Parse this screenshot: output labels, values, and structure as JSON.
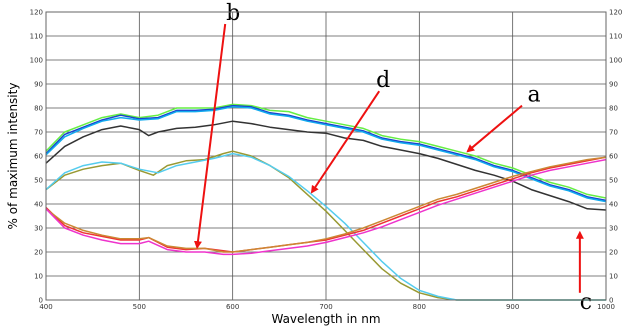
{
  "chart_data": {
    "type": "line",
    "title": "",
    "xlabel": "Wavelength in nm",
    "ylabel": "% of maximum intensity",
    "xlim": [
      400,
      1000
    ],
    "ylim": [
      0,
      120
    ],
    "x_ticks": [
      400,
      500,
      600,
      700,
      800,
      900,
      1000
    ],
    "y_ticks": [
      0,
      10,
      20,
      30,
      40,
      50,
      60,
      70,
      80,
      90,
      100,
      110,
      120
    ],
    "grid": true,
    "series": [
      {
        "color": "#66ee44",
        "points": [
          [
            400,
            62
          ],
          [
            420,
            70
          ],
          [
            440,
            73
          ],
          [
            460,
            76
          ],
          [
            480,
            77.5
          ],
          [
            500,
            76
          ],
          [
            520,
            77
          ],
          [
            540,
            80
          ],
          [
            560,
            80
          ],
          [
            580,
            80
          ],
          [
            600,
            81.5
          ],
          [
            620,
            81
          ],
          [
            640,
            79
          ],
          [
            660,
            78.5
          ],
          [
            680,
            76
          ],
          [
            700,
            74.5
          ],
          [
            720,
            73
          ],
          [
            740,
            71.5
          ],
          [
            760,
            68.5
          ],
          [
            780,
            67
          ],
          [
            800,
            66
          ],
          [
            820,
            64
          ],
          [
            840,
            62
          ],
          [
            860,
            60
          ],
          [
            880,
            57
          ],
          [
            900,
            55
          ],
          [
            920,
            52
          ],
          [
            940,
            49
          ],
          [
            960,
            47
          ],
          [
            980,
            44
          ],
          [
            1000,
            42.5
          ]
        ]
      },
      {
        "color": "#1a44cc",
        "points": [
          [
            400,
            61
          ],
          [
            420,
            69
          ],
          [
            440,
            72
          ],
          [
            460,
            75
          ],
          [
            480,
            77
          ],
          [
            500,
            75.5
          ],
          [
            520,
            76
          ],
          [
            540,
            79
          ],
          [
            560,
            79
          ],
          [
            580,
            79.5
          ],
          [
            600,
            81
          ],
          [
            620,
            80.5
          ],
          [
            640,
            78
          ],
          [
            660,
            77
          ],
          [
            680,
            75
          ],
          [
            700,
            73.5
          ],
          [
            720,
            72
          ],
          [
            740,
            70.5
          ],
          [
            760,
            67.5
          ],
          [
            780,
            66
          ],
          [
            800,
            65
          ],
          [
            820,
            63
          ],
          [
            840,
            61
          ],
          [
            860,
            59
          ],
          [
            880,
            56
          ],
          [
            900,
            54
          ],
          [
            920,
            51
          ],
          [
            940,
            48
          ],
          [
            960,
            46
          ],
          [
            980,
            43
          ],
          [
            1000,
            41.5
          ]
        ]
      },
      {
        "color": "#11aaee",
        "points": [
          [
            400,
            60.5
          ],
          [
            420,
            68
          ],
          [
            440,
            71.5
          ],
          [
            460,
            74.5
          ],
          [
            480,
            76
          ],
          [
            500,
            75
          ],
          [
            520,
            75.5
          ],
          [
            540,
            78.5
          ],
          [
            560,
            78.5
          ],
          [
            580,
            79
          ],
          [
            600,
            80.5
          ],
          [
            620,
            80
          ],
          [
            640,
            77.5
          ],
          [
            660,
            76.5
          ],
          [
            680,
            74.5
          ],
          [
            700,
            73
          ],
          [
            720,
            71.5
          ],
          [
            740,
            70
          ],
          [
            760,
            67
          ],
          [
            780,
            65.5
          ],
          [
            800,
            64.5
          ],
          [
            820,
            62.5
          ],
          [
            840,
            60.5
          ],
          [
            860,
            58.5
          ],
          [
            880,
            55.5
          ],
          [
            900,
            53.5
          ],
          [
            920,
            50.5
          ],
          [
            940,
            47.5
          ],
          [
            960,
            45.5
          ],
          [
            980,
            42.5
          ],
          [
            1000,
            41
          ]
        ]
      },
      {
        "color": "#333333",
        "points": [
          [
            400,
            57
          ],
          [
            420,
            64
          ],
          [
            440,
            68
          ],
          [
            460,
            71
          ],
          [
            480,
            72.5
          ],
          [
            500,
            71
          ],
          [
            510,
            68.5
          ],
          [
            520,
            70
          ],
          [
            540,
            71.5
          ],
          [
            560,
            72
          ],
          [
            580,
            73
          ],
          [
            600,
            74.5
          ],
          [
            620,
            73.5
          ],
          [
            640,
            72
          ],
          [
            660,
            71
          ],
          [
            680,
            70
          ],
          [
            700,
            69.5
          ],
          [
            720,
            67.5
          ],
          [
            740,
            66.5
          ],
          [
            760,
            64
          ],
          [
            780,
            62.5
          ],
          [
            800,
            61
          ],
          [
            820,
            59
          ],
          [
            840,
            56.5
          ],
          [
            860,
            54
          ],
          [
            880,
            52
          ],
          [
            900,
            49.5
          ],
          [
            920,
            46
          ],
          [
            940,
            43.5
          ],
          [
            960,
            41
          ],
          [
            980,
            38
          ],
          [
            1000,
            37.5
          ]
        ]
      },
      {
        "color": "#999933",
        "points": [
          [
            400,
            46
          ],
          [
            420,
            52
          ],
          [
            440,
            54.5
          ],
          [
            460,
            56
          ],
          [
            480,
            57
          ],
          [
            500,
            54
          ],
          [
            515,
            52
          ],
          [
            530,
            56
          ],
          [
            550,
            58
          ],
          [
            570,
            58.5
          ],
          [
            590,
            61
          ],
          [
            600,
            62
          ],
          [
            620,
            60
          ],
          [
            640,
            56
          ],
          [
            660,
            51
          ],
          [
            680,
            44
          ],
          [
            700,
            37
          ],
          [
            720,
            29
          ],
          [
            740,
            21
          ],
          [
            760,
            13
          ],
          [
            780,
            7
          ],
          [
            800,
            3
          ],
          [
            820,
            1
          ],
          [
            840,
            0
          ],
          [
            1000,
            0
          ]
        ]
      },
      {
        "color": "#55ccee",
        "points": [
          [
            400,
            46
          ],
          [
            420,
            53
          ],
          [
            440,
            56
          ],
          [
            460,
            57.5
          ],
          [
            480,
            57
          ],
          [
            500,
            54.5
          ],
          [
            520,
            53
          ],
          [
            540,
            56
          ],
          [
            560,
            57.5
          ],
          [
            580,
            59
          ],
          [
            600,
            61
          ],
          [
            620,
            59.5
          ],
          [
            640,
            56
          ],
          [
            660,
            51.5
          ],
          [
            680,
            45.5
          ],
          [
            700,
            39
          ],
          [
            720,
            32
          ],
          [
            740,
            24
          ],
          [
            760,
            16
          ],
          [
            780,
            9
          ],
          [
            800,
            4
          ],
          [
            820,
            1.5
          ],
          [
            840,
            0
          ],
          [
            1000,
            0
          ]
        ]
      },
      {
        "color": "#ee3333",
        "points": [
          [
            400,
            38.5
          ],
          [
            420,
            31
          ],
          [
            440,
            28
          ],
          [
            460,
            26.5
          ],
          [
            480,
            25
          ],
          [
            500,
            25
          ],
          [
            510,
            26
          ],
          [
            530,
            22
          ],
          [
            550,
            21
          ],
          [
            570,
            21.5
          ],
          [
            590,
            20.5
          ],
          [
            600,
            20
          ],
          [
            620,
            21
          ],
          [
            640,
            22
          ],
          [
            660,
            23
          ],
          [
            680,
            24
          ],
          [
            700,
            25
          ],
          [
            720,
            27
          ],
          [
            740,
            29
          ],
          [
            760,
            32
          ],
          [
            780,
            35
          ],
          [
            800,
            38
          ],
          [
            820,
            41
          ],
          [
            840,
            43
          ],
          [
            860,
            45.5
          ],
          [
            880,
            48
          ],
          [
            900,
            50.5
          ],
          [
            920,
            53
          ],
          [
            940,
            55
          ],
          [
            960,
            56.5
          ],
          [
            980,
            58
          ],
          [
            1000,
            59.5
          ]
        ]
      },
      {
        "color": "#cc8833",
        "points": [
          [
            400,
            38
          ],
          [
            420,
            32
          ],
          [
            440,
            29
          ],
          [
            460,
            27
          ],
          [
            480,
            25.5
          ],
          [
            500,
            25.5
          ],
          [
            510,
            26
          ],
          [
            530,
            22.5
          ],
          [
            550,
            21.5
          ],
          [
            570,
            21.5
          ],
          [
            590,
            20
          ],
          [
            600,
            20
          ],
          [
            620,
            21
          ],
          [
            640,
            22
          ],
          [
            660,
            23
          ],
          [
            680,
            24
          ],
          [
            700,
            25.5
          ],
          [
            720,
            27.5
          ],
          [
            740,
            30
          ],
          [
            760,
            33
          ],
          [
            780,
            36
          ],
          [
            800,
            39
          ],
          [
            820,
            42
          ],
          [
            840,
            44
          ],
          [
            860,
            46.5
          ],
          [
            880,
            49
          ],
          [
            900,
            51.5
          ],
          [
            920,
            53.5
          ],
          [
            940,
            55.5
          ],
          [
            960,
            57
          ],
          [
            980,
            58.5
          ],
          [
            1000,
            59.5
          ]
        ]
      },
      {
        "color": "#ee33cc",
        "points": [
          [
            400,
            38
          ],
          [
            420,
            30
          ],
          [
            440,
            27
          ],
          [
            460,
            25
          ],
          [
            480,
            23.5
          ],
          [
            500,
            23.5
          ],
          [
            510,
            24.5
          ],
          [
            530,
            21
          ],
          [
            550,
            20
          ],
          [
            570,
            20
          ],
          [
            590,
            19
          ],
          [
            600,
            19
          ],
          [
            620,
            19.5
          ],
          [
            640,
            20.5
          ],
          [
            660,
            21.5
          ],
          [
            680,
            22.5
          ],
          [
            700,
            24
          ],
          [
            720,
            26
          ],
          [
            740,
            28
          ],
          [
            760,
            30.5
          ],
          [
            780,
            33.5
          ],
          [
            800,
            36.5
          ],
          [
            820,
            39.5
          ],
          [
            840,
            42
          ],
          [
            860,
            44.5
          ],
          [
            880,
            47
          ],
          [
            900,
            49.5
          ],
          [
            920,
            52
          ],
          [
            940,
            54
          ],
          [
            960,
            55.5
          ],
          [
            980,
            57
          ],
          [
            1000,
            58.5
          ]
        ]
      }
    ],
    "annotations": [
      {
        "label": "a",
        "arrow_from": [
          910,
          81
        ],
        "arrow_to": [
          852,
          62
        ]
      },
      {
        "label": "b",
        "arrow_from": [
          592,
          115
        ],
        "arrow_to": [
          562,
          22
        ]
      },
      {
        "label": "c",
        "arrow_from": [
          972,
          3
        ],
        "arrow_to": [
          972,
          28
        ]
      },
      {
        "label": "d",
        "arrow_from": [
          757,
          87
        ],
        "arrow_to": [
          685,
          45
        ]
      }
    ]
  }
}
